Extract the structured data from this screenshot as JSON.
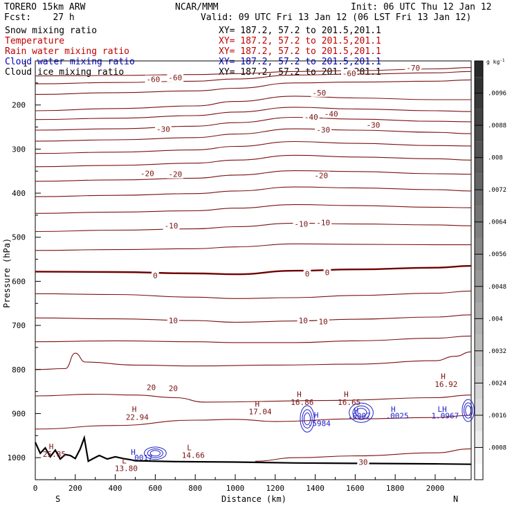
{
  "header": {
    "model": "TORERO  15km ARW",
    "center": "NCAR/MMM",
    "init": "Init: 06 UTC Thu 12 Jan 12",
    "fcst": "Fcst:    27 h",
    "valid": "Valid: 09 UTC Fri 13 Jan 12 (06 LST Fri 13 Jan 12)"
  },
  "fields": [
    {
      "name": "Snow mixing ratio",
      "xy": "XY= 187.2, 57.2 to 201.5,201.1",
      "color": "#000000"
    },
    {
      "name": "Temperature",
      "xy": "XY= 187.2, 57.2 to 201.5,201.1",
      "color": "#c00000"
    },
    {
      "name": "Rain water mixing ratio",
      "xy": "XY= 187.2, 57.2 to 201.5,201.1",
      "color": "#c00000"
    },
    {
      "name": "Cloud water mixing ratio",
      "xy": "XY= 187.2, 57.2 to 201.5,201.1",
      "color": "#0000c0"
    },
    {
      "name": "Cloud ice mixing ratio",
      "xy": "XY= 187.2, 57.2 to 201.5,201.1",
      "color": "#000000"
    }
  ],
  "axes": {
    "ylabel": "Pressure (hPa)",
    "xlabel": "Distance (km)",
    "left_end": "S",
    "right_end": "N",
    "top_tick": "1"
  },
  "colorbar": {
    "unit": "g kg",
    "unit_sup": "-1"
  },
  "chart_data": {
    "type": "line",
    "subtype": "vertical cross-section contour plot",
    "xlim": [
      0,
      2180
    ],
    "ylim": [
      1050,
      100
    ],
    "x_ticks": [
      "0",
      "200",
      "400",
      "600",
      "800",
      "1000",
      "1200",
      "1400",
      "1600",
      "1800",
      "2000"
    ],
    "x_tick_values": [
      0,
      200,
      400,
      600,
      800,
      1000,
      1200,
      1400,
      1600,
      1800,
      2000
    ],
    "y_ticks": [
      "200",
      "300",
      "400",
      "500",
      "600",
      "700",
      "800",
      "900",
      "1000"
    ],
    "y_tick_values": [
      200,
      300,
      400,
      500,
      600,
      700,
      800,
      900,
      1000
    ],
    "colorbar_ticks": [
      ".0096",
      ".0088",
      ".008",
      ".0072",
      ".0064",
      ".0056",
      ".0048",
      ".004",
      ".0032",
      ".0024",
      ".0016",
      ".0008"
    ],
    "colorbar_range": [
      0,
      0.0104
    ],
    "isotherm_color": "#7a1010",
    "freezing_color": "#6e0000",
    "terrain_color": "#000000",
    "isotherms": [
      {
        "x": [
          0,
          400,
          800,
          1000,
          1300,
          1600,
          2000,
          2180
        ],
        "p": [
          134,
          133,
          131,
          129,
          124,
          122,
          118,
          115
        ]
      },
      {
        "x": [
          0,
          400,
          800,
          1000,
          1300,
          1600,
          2000,
          2180
        ],
        "p": [
          152,
          149,
          146,
          141,
          132,
          130,
          127,
          124
        ]
      },
      {
        "x": [
          0,
          400,
          800,
          1000,
          1300,
          1600,
          2000,
          2180
        ],
        "p": [
          176,
          172,
          168,
          162,
          150,
          148,
          146,
          143
        ]
      },
      {
        "x": [
          0,
          400,
          800,
          1000,
          1300,
          1600,
          2000,
          2180
        ],
        "p": [
          213,
          208,
          202,
          192,
          180,
          184,
          188,
          188
        ]
      },
      {
        "x": [
          0,
          400,
          800,
          1000,
          1300,
          1600,
          2000,
          2180
        ],
        "p": [
          233,
          230,
          224,
          216,
          205,
          209,
          213,
          215
        ]
      },
      {
        "x": [
          0,
          400,
          800,
          1000,
          1300,
          1600,
          2000,
          2180
        ],
        "p": [
          257,
          254,
          248,
          240,
          228,
          232,
          237,
          238
        ]
      },
      {
        "x": [
          0,
          400,
          800,
          1000,
          1300,
          1600,
          2000,
          2180
        ],
        "p": [
          282,
          279,
          274,
          266,
          254,
          257,
          262,
          265
        ]
      },
      {
        "x": [
          0,
          400,
          800,
          1000,
          1300,
          1600,
          2000,
          2180
        ],
        "p": [
          310,
          307,
          302,
          294,
          283,
          287,
          292,
          293
        ]
      },
      {
        "x": [
          0,
          400,
          800,
          1000,
          1300,
          1600,
          2000,
          2180
        ],
        "p": [
          340,
          337,
          332,
          325,
          314,
          318,
          322,
          325
        ]
      },
      {
        "x": [
          0,
          400,
          800,
          1000,
          1300,
          1600,
          2000,
          2180
        ],
        "p": [
          373,
          370,
          366,
          359,
          349,
          351,
          356,
          357
        ]
      },
      {
        "x": [
          0,
          400,
          800,
          1000,
          1300,
          1600,
          2000,
          2180
        ],
        "p": [
          408,
          405,
          401,
          395,
          386,
          388,
          392,
          395
        ]
      },
      {
        "x": [
          0,
          400,
          800,
          1000,
          1300,
          1600,
          2000,
          2180
        ],
        "p": [
          446,
          443,
          440,
          434,
          426,
          428,
          432,
          433
        ]
      },
      {
        "x": [
          0,
          400,
          800,
          1000,
          1300,
          1600,
          2000,
          2180
        ],
        "p": [
          487,
          484,
          481,
          476,
          468,
          470,
          472,
          474
        ]
      },
      {
        "x": [
          0,
          400,
          800,
          1000,
          1300,
          1600,
          2000,
          2180
        ],
        "p": [
          530,
          528,
          526,
          522,
          515,
          516,
          517,
          517
        ]
      },
      {
        "x": [
          0,
          400,
          800,
          1000,
          1300,
          1600,
          2000,
          2180
        ],
        "p": [
          578,
          579,
          582,
          584,
          576,
          573,
          569,
          565
        ],
        "freezing": true
      },
      {
        "x": [
          0,
          400,
          800,
          1000,
          1300,
          1600,
          2000,
          2180
        ],
        "p": [
          628,
          630,
          636,
          639,
          637,
          632,
          627,
          622
        ]
      },
      {
        "x": [
          0,
          400,
          800,
          1000,
          1300,
          1600,
          2000,
          2180
        ],
        "p": [
          683,
          685,
          689,
          693,
          690,
          686,
          681,
          676
        ]
      },
      {
        "x": [
          0,
          400,
          800,
          1000,
          1300,
          1600,
          2000,
          2180
        ],
        "p": [
          737,
          735,
          737,
          739,
          739,
          735,
          729,
          724
        ]
      },
      {
        "x": [
          0,
          150,
          200,
          250,
          500,
          800,
          1200,
          1600,
          2000,
          2100,
          2180
        ],
        "p": [
          800,
          798,
          763,
          783,
          790,
          792,
          790,
          788,
          780,
          770,
          760
        ]
      },
      {
        "x": [
          0,
          300,
          500,
          700,
          850,
          1500,
          2000,
          2180
        ],
        "p": [
          860,
          856,
          858,
          864,
          874,
          870,
          864,
          858
        ]
      },
      {
        "x": [
          0,
          400,
          800,
          1000,
          1200,
          1600,
          2000,
          2180
        ],
        "p": [
          935,
          927,
          915,
          913,
          918,
          912,
          909,
          904
        ]
      },
      {
        "x": [
          1100,
          1300,
          1600,
          2000,
          2180
        ],
        "p": [
          1008,
          1000,
          996,
          989,
          980
        ]
      }
    ],
    "terrain": {
      "x": [
        0,
        25,
        50,
        75,
        100,
        125,
        150,
        175,
        200,
        225,
        245,
        265,
        290,
        320,
        360,
        400,
        440,
        480,
        500,
        700,
        1000,
        1300,
        1600,
        2000,
        2180
      ],
      "p": [
        965,
        990,
        978,
        998,
        983,
        1003,
        993,
        995,
        1002,
        980,
        955,
        1008,
        1002,
        995,
        1003,
        998,
        1002,
        1005,
        1007,
        1009,
        1010,
        1012,
        1013,
        1014,
        1015
      ]
    },
    "labels": [
      {
        "t": "-70",
        "x": 1890,
        "p": 116,
        "kind": "temp"
      },
      {
        "t": "-60",
        "x": 590,
        "p": 142,
        "kind": "temp"
      },
      {
        "t": "-60",
        "x": 700,
        "p": 138,
        "kind": "temp"
      },
      {
        "t": "-60",
        "x": 1570,
        "p": 128,
        "kind": "temp"
      },
      {
        "t": "-50",
        "x": 1420,
        "p": 172,
        "kind": "temp"
      },
      {
        "t": "-40",
        "x": 1380,
        "p": 227,
        "kind": "temp"
      },
      {
        "t": "-40",
        "x": 1480,
        "p": 220,
        "kind": "temp"
      },
      {
        "t": "-30",
        "x": 640,
        "p": 255,
        "kind": "temp"
      },
      {
        "t": "-30",
        "x": 1440,
        "p": 256,
        "kind": "temp"
      },
      {
        "t": "-30",
        "x": 1690,
        "p": 245,
        "kind": "temp"
      },
      {
        "t": "-20",
        "x": 560,
        "p": 355,
        "kind": "temp"
      },
      {
        "t": "-20",
        "x": 700,
        "p": 357,
        "kind": "temp"
      },
      {
        "t": "-20",
        "x": 1430,
        "p": 360,
        "kind": "temp"
      },
      {
        "t": "-10",
        "x": 680,
        "p": 474,
        "kind": "temp"
      },
      {
        "t": "-10",
        "x": 1330,
        "p": 470,
        "kind": "temp"
      },
      {
        "t": "-10",
        "x": 1440,
        "p": 467,
        "kind": "temp"
      },
      {
        "t": "0",
        "x": 600,
        "p": 587,
        "kind": "temp"
      },
      {
        "t": "0",
        "x": 1360,
        "p": 583,
        "kind": "temp"
      },
      {
        "t": "0",
        "x": 1460,
        "p": 580,
        "kind": "temp"
      },
      {
        "t": "10",
        "x": 690,
        "p": 689,
        "kind": "temp"
      },
      {
        "t": "10",
        "x": 1340,
        "p": 689,
        "kind": "temp"
      },
      {
        "t": "10",
        "x": 1440,
        "p": 691,
        "kind": "temp"
      },
      {
        "t": "20",
        "x": 580,
        "p": 840,
        "kind": "temp"
      },
      {
        "t": "20",
        "x": 690,
        "p": 843,
        "kind": "temp"
      },
      {
        "t": "30",
        "x": 1640,
        "p": 1010,
        "kind": "temp"
      },
      {
        "t": "H",
        "x": 80,
        "p": 975,
        "kind": "hl"
      },
      {
        "t": "25.85",
        "x": 95,
        "p": 992,
        "kind": "hlv"
      },
      {
        "t": "H",
        "x": 495,
        "p": 890,
        "kind": "hl"
      },
      {
        "t": "22.94",
        "x": 510,
        "p": 908,
        "kind": "hlv"
      },
      {
        "t": "L",
        "x": 770,
        "p": 977,
        "kind": "hl"
      },
      {
        "t": "14.66",
        "x": 790,
        "p": 994,
        "kind": "hlv"
      },
      {
        "t": "H",
        "x": 1110,
        "p": 878,
        "kind": "hl"
      },
      {
        "t": "17.04",
        "x": 1125,
        "p": 895,
        "kind": "hlv"
      },
      {
        "t": "H",
        "x": 1320,
        "p": 856,
        "kind": "hl"
      },
      {
        "t": "16.86",
        "x": 1335,
        "p": 874,
        "kind": "hlv"
      },
      {
        "t": "H",
        "x": 1555,
        "p": 856,
        "kind": "hl"
      },
      {
        "t": "16.65",
        "x": 1570,
        "p": 874,
        "kind": "hlv"
      },
      {
        "t": "H",
        "x": 2040,
        "p": 815,
        "kind": "hl"
      },
      {
        "t": "16.92",
        "x": 2055,
        "p": 833,
        "kind": "hlv"
      },
      {
        "t": "L",
        "x": 445,
        "p": 1007,
        "kind": "hl"
      },
      {
        "t": "13.80",
        "x": 455,
        "p": 1024,
        "kind": "hlv"
      },
      {
        "t": "H",
        "x": 490,
        "p": 987,
        "kind": "hlc"
      },
      {
        "t": ".0017",
        "x": 530,
        "p": 1000,
        "kind": "hlc"
      },
      {
        "t": "H",
        "x": 1405,
        "p": 903,
        "kind": "hlc"
      },
      {
        "t": ".5984",
        "x": 1420,
        "p": 922,
        "kind": "hlc"
      },
      {
        "t": "H",
        "x": 1605,
        "p": 893,
        "kind": "hlc"
      },
      {
        "t": ".0007",
        "x": 1620,
        "p": 905,
        "kind": "hlc"
      },
      {
        "t": "H",
        "x": 1790,
        "p": 890,
        "kind": "hlc"
      },
      {
        "t": ".0025",
        "x": 1810,
        "p": 905,
        "kind": "hlc"
      },
      {
        "t": "LH",
        "x": 2035,
        "p": 890,
        "kind": "hlc"
      },
      {
        "t": "1.0967",
        "x": 2050,
        "p": 905,
        "kind": "hlc"
      }
    ],
    "cloud_blobs": [
      {
        "x": 600,
        "p": 990,
        "rx": 55,
        "rp": 14
      },
      {
        "x": 1360,
        "p": 912,
        "rx": 35,
        "rp": 30
      },
      {
        "x": 1630,
        "p": 898,
        "rx": 60,
        "rp": 22
      },
      {
        "x": 2165,
        "p": 893,
        "rx": 30,
        "rp": 25
      }
    ]
  }
}
